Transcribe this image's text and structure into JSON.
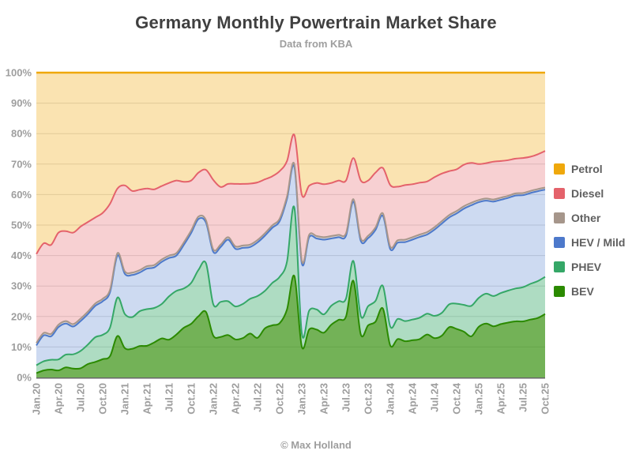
{
  "chart_data": {
    "type": "area",
    "stacking": "percent",
    "title": "Germany Monthly Powertrain Market Share",
    "subtitle": "Data from KBA",
    "credit": "© Max Holland",
    "legend_position": "right",
    "grid": "horizontal",
    "ylim": [
      0,
      100
    ],
    "y_ticks": [
      "0%",
      "10%",
      "20%",
      "30%",
      "40%",
      "50%",
      "60%",
      "70%",
      "80%",
      "90%",
      "100%"
    ],
    "x_ticks": [
      "Jan.20",
      "Apr.20",
      "Jul.20",
      "Oct.20",
      "Jan.21",
      "Apr.21",
      "Jul.21",
      "Oct.21",
      "Jan.22",
      "Apr.22",
      "Jul.22",
      "Oct.22",
      "Jan.23",
      "Apr.23",
      "Jul.23",
      "Oct.23",
      "Jan.24",
      "Apr.24",
      "Jul.24",
      "Oct.24",
      "Jan.25",
      "Apr.25",
      "Jul.25",
      "Oct.25"
    ],
    "x_tick_every_n_months": 3,
    "n_months": 70,
    "months_start": "Jan.20",
    "months_end": "Oct.25",
    "stack_order_bottom_to_top": [
      "BEV",
      "PHEV",
      "HEV / Mild",
      "Other",
      "Diesel",
      "Petrol"
    ],
    "series": [
      {
        "name": "Petrol",
        "color": "#EFA80B",
        "fill_opacity": 0.32,
        "values": [
          59.5,
          56.0,
          56.5,
          52.5,
          52.0,
          52.5,
          50.5,
          49.0,
          47.5,
          46.0,
          43.0,
          38.0,
          37.0,
          38.8,
          38.4,
          38.0,
          38.3,
          37.2,
          36.2,
          35.4,
          35.8,
          35.4,
          32.8,
          31.9,
          35.2,
          37.5,
          36.5,
          36.5,
          36.5,
          36.4,
          36.0,
          35.0,
          34.0,
          32.3,
          29.0,
          20.5,
          40.0,
          37.1,
          36.2,
          36.6,
          36.2,
          35.4,
          35.4,
          28.0,
          35.4,
          35.4,
          32.8,
          31.3,
          36.9,
          37.4,
          36.9,
          36.6,
          36.1,
          35.7,
          34.3,
          33.1,
          32.3,
          31.7,
          30.2,
          29.6,
          30.0,
          29.7,
          29.2,
          29.0,
          28.7,
          28.2,
          28.0,
          27.6,
          26.8,
          25.7
        ]
      },
      {
        "name": "Diesel",
        "color": "#E4626B",
        "fill_opacity": 0.3,
        "values": [
          29.2,
          29.4,
          29.2,
          30.2,
          29.5,
          30.0,
          30.2,
          29.4,
          28.2,
          28.2,
          28.2,
          21.2,
          28.2,
          26.8,
          26.4,
          25.5,
          24.8,
          24.1,
          23.8,
          23.8,
          19.9,
          16.4,
          14.4,
          16.5,
          22.8,
          18.9,
          17.5,
          20.5,
          20.2,
          20.0,
          18.9,
          17.7,
          16.1,
          15.6,
          11.6,
          9.7,
          21.7,
          16.1,
          17.4,
          17.4,
          17.4,
          17.8,
          17.3,
          13.5,
          19.0,
          18.1,
          18.0,
          14.9,
          20.2,
          17.6,
          17.9,
          17.4,
          17.0,
          16.6,
          16.4,
          15.6,
          14.4,
          13.7,
          13.6,
          13.1,
          11.8,
          11.6,
          12.4,
          12.0,
          11.7,
          11.4,
          11.5,
          11.2,
          11.4,
          12.0
        ]
      },
      {
        "name": "Other",
        "color": "#A6968B",
        "fill_opacity": 0.45,
        "values": [
          0.8,
          0.8,
          0.8,
          0.8,
          0.8,
          0.8,
          0.8,
          0.8,
          0.8,
          0.8,
          0.8,
          0.8,
          0.8,
          0.8,
          0.8,
          0.8,
          0.8,
          0.8,
          0.8,
          0.8,
          0.8,
          0.8,
          0.8,
          0.8,
          0.8,
          0.8,
          0.8,
          0.8,
          0.8,
          0.8,
          0.8,
          0.8,
          0.8,
          0.8,
          0.8,
          0.8,
          0.8,
          0.8,
          0.8,
          0.8,
          0.8,
          0.8,
          0.8,
          0.8,
          0.8,
          0.8,
          0.8,
          0.8,
          0.8,
          0.8,
          0.8,
          0.8,
          0.8,
          0.8,
          0.8,
          0.8,
          0.8,
          0.8,
          0.8,
          0.8,
          0.7,
          0.7,
          0.7,
          0.7,
          0.7,
          0.7,
          0.7,
          0.7,
          0.7,
          0.7
        ]
      },
      {
        "name": "HEV / Mild",
        "color": "#4D79CB",
        "fill_opacity": 0.28,
        "values": [
          6.5,
          8.5,
          7.7,
          10.6,
          10.2,
          9.1,
          9.8,
          10.0,
          10.3,
          11.0,
          11.6,
          13.8,
          13.2,
          13.8,
          12.7,
          13.3,
          13.3,
          13.8,
          12.6,
          11.6,
          14.3,
          16.4,
          16.7,
          13.3,
          17.2,
          18.0,
          20.2,
          18.9,
          18.4,
          17.0,
          17.6,
          18.1,
          18.1,
          18.3,
          20.6,
          13.4,
          23.0,
          24.1,
          23.3,
          24.5,
          22.1,
          21.0,
          20.6,
          19.5,
          24.6,
          22.3,
          23.3,
          23.0,
          25.4,
          25.0,
          25.9,
          26.2,
          26.5,
          26.0,
          28.3,
          29.3,
          28.5,
          29.6,
          31.6,
          33.0,
          31.4,
          30.5,
          31.0,
          30.6,
          30.4,
          30.5,
          30.2,
          29.8,
          29.5,
          28.6
        ]
      },
      {
        "name": "PHEV",
        "color": "#35A767",
        "fill_opacity": 0.4,
        "values": [
          2.6,
          3.0,
          3.2,
          3.6,
          4.2,
          4.7,
          5.7,
          6.4,
          8.1,
          8.0,
          9.4,
          12.6,
          11.2,
          10.4,
          11.4,
          12.0,
          11.3,
          11.3,
          14.2,
          14.3,
          12.9,
          13.4,
          15.2,
          16.0,
          10.3,
          11.5,
          11.1,
          10.8,
          11.2,
          11.4,
          13.7,
          12.3,
          13.9,
          15.2,
          15.7,
          22.4,
          4.4,
          6.2,
          6.6,
          6.0,
          6.2,
          6.1,
          5.9,
          6.5,
          6.1,
          6.3,
          6.8,
          7.4,
          6.2,
          6.6,
          6.6,
          6.8,
          7.0,
          6.8,
          7.3,
          7.5,
          7.5,
          8.3,
          8.8,
          10.0,
          9.5,
          9.8,
          9.9,
          10.2,
          10.5,
          10.8,
          11.2,
          11.7,
          12.1,
          12.2
        ]
      },
      {
        "name": "BEV",
        "color": "#2B8A00",
        "fill_opacity": 0.66,
        "values": [
          1.4,
          2.3,
          2.6,
          2.3,
          3.3,
          2.9,
          3.0,
          4.4,
          5.1,
          6.0,
          7.0,
          13.6,
          9.6,
          9.4,
          10.3,
          10.4,
          11.5,
          12.8,
          12.4,
          14.1,
          16.3,
          17.6,
          20.1,
          21.5,
          13.7,
          13.3,
          13.9,
          12.5,
          12.9,
          14.4,
          13.0,
          16.1,
          17.1,
          17.8,
          22.3,
          33.2,
          10.1,
          15.7,
          15.7,
          14.7,
          17.3,
          18.9,
          20.0,
          31.7,
          14.1,
          17.1,
          18.3,
          22.6,
          10.5,
          12.6,
          11.9,
          12.2,
          12.6,
          14.1,
          12.9,
          13.7,
          16.5,
          15.9,
          15.0,
          13.5,
          16.6,
          17.7,
          16.8,
          17.5,
          18.0,
          18.4,
          18.4,
          19.0,
          19.5,
          20.8
        ]
      }
    ]
  },
  "colors": {
    "background": "#FFFFFF",
    "title_text": "#404040",
    "muted_text": "#9E9E9E",
    "legend_text": "#5F5F5F",
    "grid": "#DBDBDB",
    "axis": "#666666"
  }
}
